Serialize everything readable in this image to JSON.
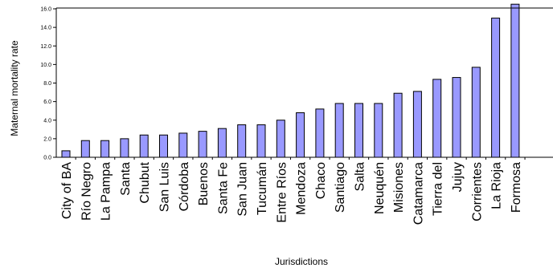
{
  "chart_data": {
    "type": "bar",
    "xlabel": "Jurisdictions",
    "ylabel": "Maternal mortality rate",
    "ylim": [
      0,
      16
    ],
    "yticks": [
      "0.0",
      "2.0",
      "4.0",
      "6.0",
      "8.0",
      "10.0",
      "12.0",
      "14.0",
      "16.0"
    ],
    "grid": false,
    "legend": false,
    "bar_color": "#9999ff",
    "bar_edge_color": "#000000",
    "categories": [
      "City of BA",
      "Río Negro",
      "La Pampa",
      "Santa",
      "Chubut",
      "San Luis",
      "Córdoba",
      "Buenos",
      "Santa Fe",
      "San Juan",
      "Tucumán",
      "Entre Ríos",
      "Mendoza",
      "Chaco",
      "Santiago",
      "Salta",
      "Neuquén",
      "Misiones",
      "Catamarca",
      "Tierra del",
      "Jujuy",
      "Corrientes",
      "La Rioja",
      "Formosa"
    ],
    "values": [
      0.7,
      1.8,
      1.8,
      2.0,
      2.4,
      2.4,
      2.6,
      2.8,
      3.1,
      3.5,
      3.5,
      4.0,
      4.8,
      5.2,
      5.8,
      5.8,
      5.8,
      6.9,
      7.1,
      8.4,
      8.6,
      9.7,
      15.0,
      16.5
    ]
  }
}
